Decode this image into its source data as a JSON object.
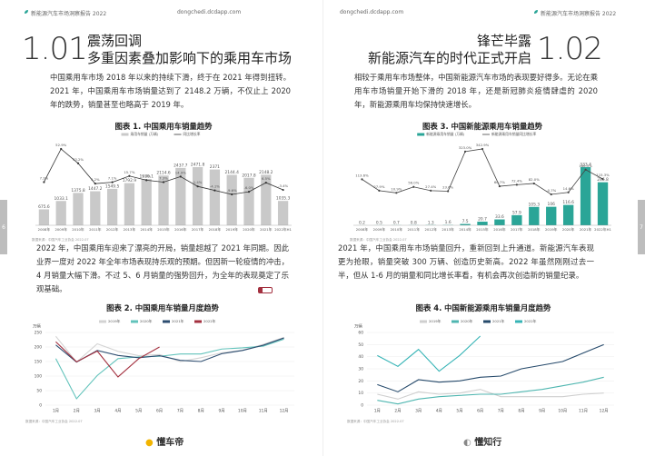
{
  "left_page": {
    "header": {
      "report": "新能源汽车市场洞察报告 2022",
      "site": "dongchedi.dcdapp.com"
    },
    "section_number": "1.01",
    "title_lines": [
      "震荡回调",
      "多重因素叠加影响下的乘用车市场"
    ],
    "paragraphs": [
      "中国乘用车市场 2018 年以来的持续下滑，终于在 2021 年得到扭转。2021 年，中国乘用车市场销量达到了 2148.2 万辆，不仅止上 2020 年的跌势，销量甚至也略高于 2019 年。",
      "2022 年，中国乘用车迎来了漂亮的开局，销量超越了 2021 年同期。因此业界一度对 2022 年全年市场表现持乐观的预期。但因新一轮疫情的冲击，4 月销量大幅下滑。不过 5、6 月销量的强势回升，为全年的表现奠定了乐观基础。"
    ],
    "page_number": "6",
    "footer_logo": "懂车帝"
  },
  "right_page": {
    "header": {
      "report": "新能源汽车市场洞察报告 2022",
      "site": "dongchedi.dcdapp.com"
    },
    "section_number": "1.02",
    "title_lines": [
      "锋芒毕露",
      "新能源汽车的时代正式开启"
    ],
    "paragraphs": [
      "相较于乘用车市场整体，中国新能源汽车市场的表现要好得多。无论在乘用车市场销量开始下滑的 2018 年，还是新冠肺炎疫情肆虐的 2020 年，新能源乘用车均保持快速增长。",
      "2021 年，中国乘用车市场销量回升，重新回到上升通道。新能源汽车表现更为抢眼，销量突破 300 万辆、创造历史新高。2022 年虽然刚刚过去一半，但从 1-6 月的销量和同比增长率看，有机会再次创造新的销量纪录。"
    ],
    "page_number": "7",
    "footer_logo": "懂知行"
  },
  "chart_data": [
    {
      "type": "bar_line",
      "title": "图表 1. 中国乘用车销量趋势",
      "source": "数据来源：中国汽车工业协会 2022.07",
      "categories": [
        "2008年",
        "2009年",
        "2010年",
        "2011年",
        "2012年",
        "2013年",
        "2014年",
        "2015年",
        "2016年",
        "2017年",
        "2018年",
        "2019年",
        "2020年",
        "2021年",
        "2022年H1"
      ],
      "series": [
        {
          "name": "乘用车销量 (万辆)",
          "color": "#c9c9c9",
          "values": [
            675.6,
            1033.1,
            1375.8,
            1447.2,
            1549.5,
            1792.9,
            1970.1,
            2114.6,
            2437.7,
            2471.8,
            2371.0,
            2144.4,
            2017.8,
            2148.2,
            1035.3
          ]
        },
        {
          "name": "同比增长率",
          "color": "#333333",
          "axis": "y2",
          "values": [
            7.3,
            52.9,
            33.2,
            5.2,
            7.1,
            15.7,
            9.9,
            7.3,
            14.9,
            1.4,
            -4.1,
            -9.6,
            -6.0,
            6.5,
            -3.4
          ],
          "value_labels": [
            "7.3%",
            "52.9%",
            "33.2%",
            "5.2%",
            "7.1%",
            "15.7%",
            "9.9%",
            "7.3%",
            "14.9%",
            "1.4%",
            "-4.1%",
            "-9.6%",
            "-6.0%",
            "6.5%",
            "-3.4%"
          ]
        }
      ]
    },
    {
      "type": "line",
      "title": "图表 2. 中国乘用车销量月度趋势",
      "source": "数据来源：中国汽车工业协会 2022.07",
      "ylabel": "万辆",
      "categories": [
        "1月",
        "2月",
        "3月",
        "4月",
        "5月",
        "6月",
        "7月",
        "8月",
        "9月",
        "10月",
        "11月",
        "12月"
      ],
      "ylim": [
        0,
        250
      ],
      "yticks": [
        0,
        50,
        100,
        150,
        200,
        250
      ],
      "grid": true,
      "series": [
        {
          "name": "2019年",
          "color": "#d3d3d3",
          "values": [
            237,
            148,
            211,
            185,
            170,
            174,
            150,
            163,
            180,
            189,
            209,
            233
          ]
        },
        {
          "name": "2020年",
          "color": "#62c3bb",
          "values": [
            160,
            22,
            102,
            160,
            166,
            168,
            176,
            176,
            193,
            197,
            203,
            227
          ]
        },
        {
          "name": "2021年",
          "color": "#2d4d70",
          "values": [
            207,
            148,
            188,
            171,
            163,
            170,
            154,
            150,
            177,
            188,
            206,
            231
          ]
        },
        {
          "name": "2022年",
          "color": "#a3303f",
          "values": [
            218,
            149,
            186,
            97,
            160,
            200,
            null,
            null,
            null,
            null,
            null,
            null
          ]
        }
      ]
    },
    {
      "type": "bar_line",
      "title": "图表 3. 中国新能源乘用车销量趋势",
      "source": "数据来源：中国汽车工业协会 2022.07",
      "categories": [
        "2008年",
        "2009年",
        "2010年",
        "2011年",
        "2012年",
        "2013年",
        "2014年",
        "2015年",
        "2016年",
        "2017年",
        "2018年",
        "2019年",
        "2020年",
        "2021年",
        "2022年H1"
      ],
      "series": [
        {
          "name": "新能源乘用车销量 (万辆)",
          "color": "#2aa597",
          "values": [
            0.2,
            0.5,
            0.7,
            0.8,
            1.3,
            1.6,
            7.5,
            20.7,
            33.6,
            57.9,
            105.3,
            106.0,
            116.6,
            333.4,
            246.8
          ]
        },
        {
          "name": "新能源乘用车销量同比增长率",
          "color": "#444444",
          "axis": "y2",
          "values": [
            113.6,
            27.9,
            10.9,
            56.0,
            27.4,
            23.6,
            323.0,
            342.9,
            60.7,
            72.4,
            82.0,
            -0.7,
            14.6,
            186.5,
            115.3
          ],
          "value_labels": [
            "113.6%",
            "27.9%",
            "10.9%",
            "56.0%",
            "27.4%",
            "23.6%",
            "323.0%",
            "342.9%",
            "60.7%",
            "72.4%",
            "82.0%",
            "-0.7%",
            "14.6%",
            "186.5%",
            "115.3%"
          ]
        }
      ]
    },
    {
      "type": "line",
      "title": "图表 4. 中国新能源乘用车销量月度趋势",
      "source": "数据来源：中国汽车工业协会 2022.07",
      "ylabel": "万辆",
      "categories": [
        "1月",
        "2月",
        "3月",
        "4月",
        "5月",
        "6月",
        "7月",
        "8月",
        "9月",
        "10月",
        "11月",
        "12月"
      ],
      "ylim": [
        0,
        60
      ],
      "yticks": [
        0,
        10,
        20,
        30,
        40,
        50,
        60
      ],
      "grid": true,
      "series": [
        {
          "name": "2019年",
          "color": "#cfcfcf",
          "values": [
            9,
            5,
            11,
            9,
            10,
            13,
            7,
            7,
            7,
            7,
            9,
            10
          ]
        },
        {
          "name": "2020年",
          "color": "#4fb6b0",
          "values": [
            4,
            1,
            5,
            7,
            8,
            9,
            9,
            11,
            13,
            16,
            19,
            23
          ]
        },
        {
          "name": "2021年",
          "color": "#264a6b",
          "values": [
            17,
            11,
            21,
            19,
            20,
            23,
            24,
            30,
            33,
            36,
            43,
            50
          ]
        },
        {
          "name": "2022年",
          "color": "#37b4b6",
          "values": [
            41,
            32,
            46,
            28,
            41,
            57,
            null,
            null,
            null,
            null,
            null,
            null
          ]
        }
      ]
    }
  ]
}
